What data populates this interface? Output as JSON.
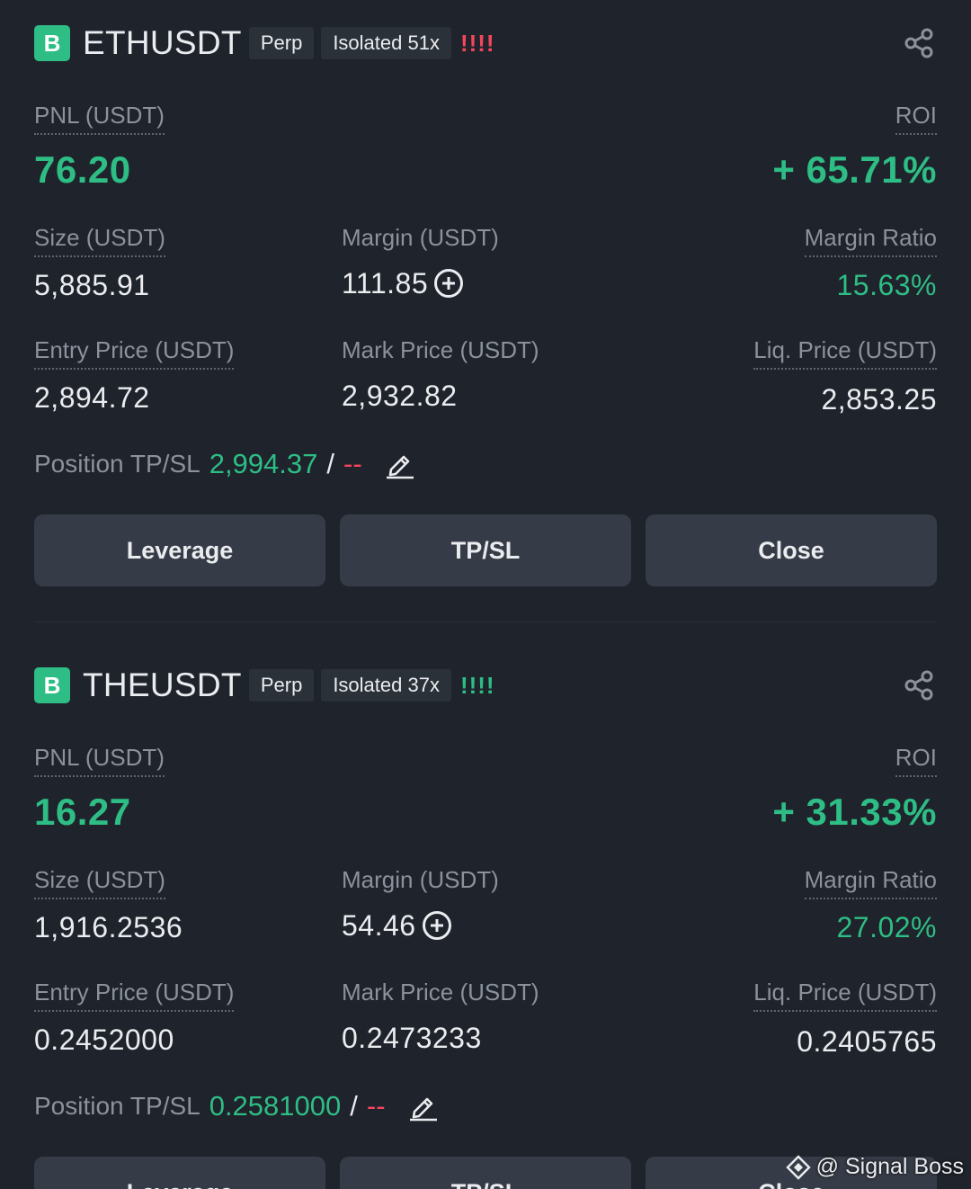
{
  "positions": [
    {
      "side_badge": "B",
      "symbol": "ETHUSDT",
      "contract_type": "Perp",
      "margin_mode": "Isolated 51x",
      "risk_indicator": "!!!!",
      "pnl_label": "PNL (USDT)",
      "pnl_value": "76.20",
      "roi_label": "ROI",
      "roi_value": "+ 65.71%",
      "size_label": "Size (USDT)",
      "size_value": "5,885.91",
      "margin_label": "Margin (USDT)",
      "margin_value": "111.85",
      "margin_ratio_label": "Margin Ratio",
      "margin_ratio_value": "15.63%",
      "entry_label": "Entry Price (USDT)",
      "entry_value": "2,894.72",
      "mark_label": "Mark Price (USDT)",
      "mark_value": "2,932.82",
      "liq_label": "Liq. Price (USDT)",
      "liq_value": "2,853.25",
      "tpsl_label": "Position TP/SL",
      "tp_value": "2,994.37",
      "separator": "/",
      "sl_value": "--",
      "buttons": {
        "leverage": "Leverage",
        "tpsl": "TP/SL",
        "close": "Close"
      }
    },
    {
      "side_badge": "B",
      "symbol": "THEUSDT",
      "contract_type": "Perp",
      "margin_mode": "Isolated 37x",
      "risk_indicator": "!!!!",
      "pnl_label": "PNL (USDT)",
      "pnl_value": "16.27",
      "roi_label": "ROI",
      "roi_value": "+ 31.33%",
      "size_label": "Size (USDT)",
      "size_value": "1,916.2536",
      "margin_label": "Margin (USDT)",
      "margin_value": "54.46",
      "margin_ratio_label": "Margin Ratio",
      "margin_ratio_value": "27.02%",
      "entry_label": "Entry Price (USDT)",
      "entry_value": "0.2452000",
      "mark_label": "Mark Price (USDT)",
      "mark_value": "0.2473233",
      "liq_label": "Liq. Price (USDT)",
      "liq_value": "0.2405765",
      "tpsl_label": "Position TP/SL",
      "tp_value": "0.2581000",
      "separator": "/",
      "sl_value": "--",
      "buttons": {
        "leverage": "Leverage",
        "tpsl": "TP/SL",
        "close": "Close"
      }
    }
  ],
  "watermark": "@ Signal Boss",
  "colors": {
    "background": "#1f232b",
    "profit": "#2ebd85",
    "loss": "#f6465d",
    "button": "#363c47"
  }
}
